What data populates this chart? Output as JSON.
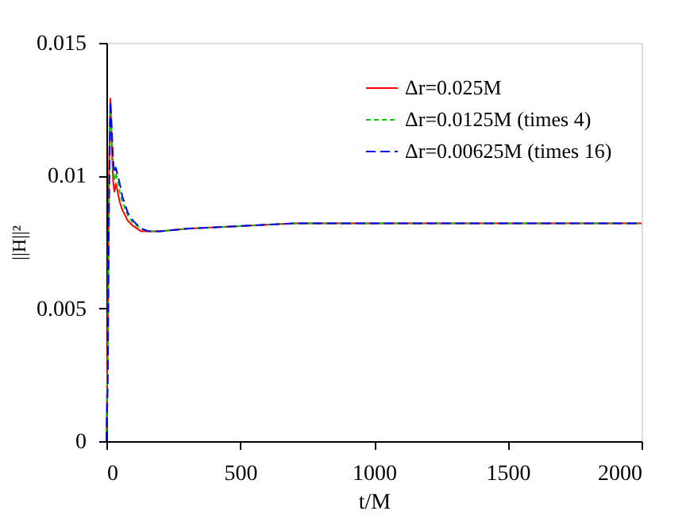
{
  "chart_data": {
    "type": "line",
    "xlabel": "t/M",
    "ylabel": "||H||²",
    "xlim": [
      0,
      2000
    ],
    "ylim": [
      0,
      0.015
    ],
    "xticks": [
      0,
      500,
      1000,
      1500,
      2000
    ],
    "yticks": [
      0,
      0.005,
      0.01,
      0.015
    ],
    "grid": false,
    "legend": "top right",
    "marker": "none",
    "series": [
      {
        "name": "Δr=0.025M",
        "color": "#ff0000",
        "line_style": "solid",
        "x": [
          0,
          5,
          10,
          15,
          20,
          25,
          30,
          35,
          40,
          50,
          60,
          80,
          100,
          130,
          160,
          200,
          300,
          500,
          700,
          1000,
          1300,
          1600,
          2000
        ],
        "values": [
          0,
          0.004,
          0.0105,
          0.0129,
          0.0112,
          0.0098,
          0.0094,
          0.0097,
          0.0095,
          0.009,
          0.0087,
          0.0083,
          0.0081,
          0.0079,
          0.0079,
          0.0079,
          0.008,
          0.0081,
          0.0082,
          0.0082,
          0.0082,
          0.0082,
          0.0082
        ]
      },
      {
        "name": "Δr=0.0125M (times 4)",
        "color": "#00cc00",
        "line_style": "dotted",
        "x": [
          0,
          5,
          10,
          15,
          20,
          25,
          30,
          35,
          40,
          50,
          60,
          80,
          100,
          130,
          160,
          200,
          300,
          500,
          700,
          1000,
          1300,
          1600,
          2000
        ],
        "values": [
          0,
          0.003,
          0.0095,
          0.0125,
          0.0115,
          0.0103,
          0.0098,
          0.0101,
          0.0099,
          0.0094,
          0.009,
          0.0085,
          0.0082,
          0.008,
          0.0079,
          0.0079,
          0.008,
          0.0081,
          0.0082,
          0.0082,
          0.0082,
          0.0082,
          0.0082
        ]
      },
      {
        "name": "Δr=0.00625M (times 16)",
        "color": "#0000ff",
        "line_style": "dashed",
        "x": [
          0,
          5,
          10,
          15,
          20,
          25,
          30,
          35,
          40,
          50,
          60,
          80,
          100,
          130,
          160,
          200,
          300,
          500,
          700,
          1000,
          1300,
          1600,
          2000
        ],
        "values": [
          0,
          0.002,
          0.009,
          0.0128,
          0.0118,
          0.0106,
          0.0101,
          0.0103,
          0.0101,
          0.0097,
          0.0092,
          0.0086,
          0.0083,
          0.008,
          0.0079,
          0.0079,
          0.008,
          0.0081,
          0.0082,
          0.0082,
          0.0082,
          0.0082,
          0.0082
        ]
      }
    ]
  }
}
